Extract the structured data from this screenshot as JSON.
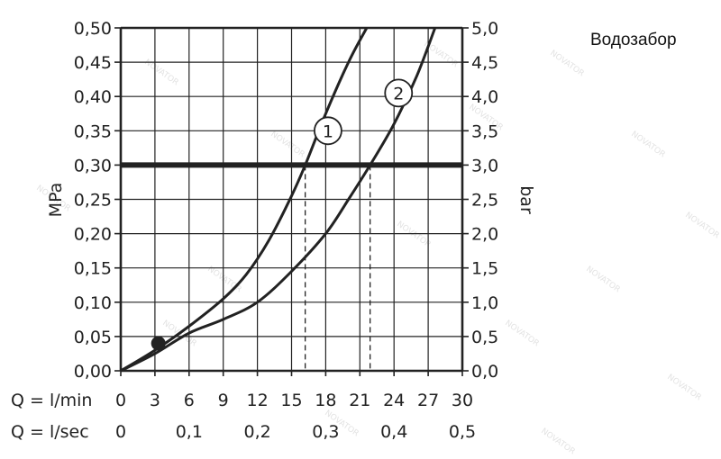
{
  "caption": "Водозабор",
  "watermark": "NOVATOR",
  "colors": {
    "ink": "#222222",
    "background": "#ffffff",
    "grid": "#222222",
    "watermark": "#e3e3e3"
  },
  "chart_data": {
    "type": "line",
    "x_axis": {
      "unit_label": "Q = l/min",
      "range": [
        0,
        30
      ],
      "ticks": [
        0,
        3,
        6,
        9,
        12,
        15,
        18,
        21,
        24,
        27,
        30
      ]
    },
    "x_axis_secondary": {
      "unit_label": "Q = l/sec",
      "range": [
        0,
        0.5
      ],
      "ticks": [
        "0",
        "0,1",
        "0,2",
        "0,3",
        "0,4",
        "0,5"
      ],
      "tick_values": [
        0,
        0.1,
        0.2,
        0.3,
        0.4,
        0.5
      ]
    },
    "y_axis_left": {
      "label": "MPa",
      "range": [
        0,
        0.5
      ],
      "ticks": [
        "0,00",
        "0,05",
        "0,10",
        "0,15",
        "0,20",
        "0,25",
        "0,30",
        "0,35",
        "0,40",
        "0,45",
        "0,50"
      ],
      "tick_values": [
        0,
        0.05,
        0.1,
        0.15,
        0.2,
        0.25,
        0.3,
        0.35,
        0.4,
        0.45,
        0.5
      ]
    },
    "y_axis_right": {
      "label": "bar",
      "range": [
        0,
        5
      ],
      "ticks": [
        "0,0",
        "0,5",
        "1,0",
        "1,5",
        "2,0",
        "2,5",
        "3,0",
        "3,5",
        "4,0",
        "4,5",
        "5,0"
      ]
    },
    "grid": true,
    "series": [
      {
        "label": "1",
        "x": [
          0,
          3,
          6,
          9,
          11,
          13,
          15,
          16.2,
          18,
          20,
          21.6
        ],
        "y": [
          0,
          0.03,
          0.065,
          0.105,
          0.14,
          0.19,
          0.255,
          0.3,
          0.375,
          0.45,
          0.5
        ]
      },
      {
        "label": "2",
        "x": [
          0,
          3,
          6,
          9,
          12,
          15,
          18,
          20,
          21.9,
          24,
          26,
          27.6
        ],
        "y": [
          0,
          0.025,
          0.055,
          0.075,
          0.1,
          0.145,
          0.2,
          0.25,
          0.3,
          0.36,
          0.43,
          0.5
        ]
      }
    ],
    "marker_point": {
      "x": 3.3,
      "y": 0.04
    },
    "reference_line": {
      "y": 0.3
    },
    "dashed_drops": [
      {
        "x": 16.2,
        "from_y": 0.3
      },
      {
        "x": 21.9,
        "from_y": 0.3
      }
    ]
  }
}
